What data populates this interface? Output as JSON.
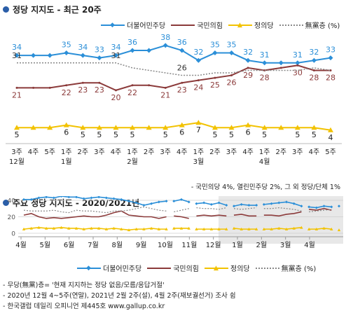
{
  "top": {
    "title": "정당 지지도 - 최근 20주",
    "note": "- 국민의당 4%, 열린민주당 2%, 그 외 정당/단체 1%"
  },
  "bottom": {
    "title": "주요 정당 지지도 - 2020/2021년"
  },
  "legend": [
    {
      "name": "더불어민주당",
      "color": "#2b8fd8",
      "marker": "diamond"
    },
    {
      "name": "국민의힘",
      "color": "#8b3a3a",
      "marker": "none"
    },
    {
      "name": "정의당",
      "color": "#f2c200",
      "marker": "triangle"
    },
    {
      "name": "無黨층 (%)",
      "color": "#888888",
      "marker": "dotted"
    }
  ],
  "footnotes": [
    "- 무당(無黨)층= '현재 지지하는 정당 없음/모름/응답거절'",
    "- 2020년 12월 4~5주(연말), 2021년 2월 2주(설), 4월 2주(재보궐선거) 조사 쉼",
    "- 한국갤럽 데일리 오피니언 제445호 www.gallup.co.kr"
  ],
  "chart_data": [
    {
      "type": "line",
      "title": "정당 지지도 - 최근 20주",
      "categories": [
        "3주",
        "4주",
        "5주",
        "1주",
        "2주",
        "3주",
        "4주",
        "1주",
        "2주",
        "3주",
        "4주",
        "1주",
        "2주",
        "3주",
        "4주",
        "1주",
        "2주",
        "3주",
        "4주",
        "5주"
      ],
      "month_labels": [
        {
          "label": "12월",
          "index": 0
        },
        {
          "label": "1월",
          "index": 3
        },
        {
          "label": "2월",
          "index": 7
        },
        {
          "label": "3월",
          "index": 11
        },
        {
          "label": "4월",
          "index": 15
        }
      ],
      "ylim": [
        0,
        45
      ],
      "series": [
        {
          "name": "더불어민주당",
          "color": "#2b8fd8",
          "values": [
            34,
            34,
            34,
            35,
            34,
            33,
            34,
            36,
            36,
            38,
            36,
            32,
            35,
            35,
            32,
            31,
            31,
            31,
            32,
            33
          ],
          "labels": [
            "34",
            "",
            "",
            "35",
            "34",
            "33",
            "34",
            "36",
            "",
            "38",
            "36",
            "32",
            "35",
            "35",
            "32",
            "31",
            "",
            "31",
            "32",
            "33"
          ]
        },
        {
          "name": "국민의힘",
          "color": "#8b3a3a",
          "values": [
            21,
            21,
            21,
            22,
            23,
            23,
            20,
            22,
            22,
            21,
            23,
            24,
            25,
            26,
            29,
            28,
            29,
            30,
            28,
            28
          ],
          "labels": [
            "21",
            "",
            "",
            "22",
            "23",
            "23",
            "20",
            "22",
            "",
            "21",
            "23",
            "24",
            "25",
            "26",
            "29",
            "28",
            "",
            "30",
            "28",
            "28"
          ]
        },
        {
          "name": "정의당",
          "color": "#f2c200",
          "values": [
            5,
            5,
            5,
            6,
            5,
            5,
            5,
            5,
            5,
            5,
            6,
            7,
            5,
            5,
            6,
            5,
            5,
            5,
            5,
            4
          ],
          "labels": [
            "5",
            "",
            "",
            "6",
            "5",
            "5",
            "5",
            "5",
            "",
            "5",
            "6",
            "7",
            "5",
            "5",
            "6",
            "5",
            "",
            "5",
            "5",
            "4"
          ]
        },
        {
          "name": "無黨층",
          "color": "#888888",
          "values": [
            31,
            31,
            31,
            31,
            31,
            31,
            31,
            29,
            28,
            27,
            26,
            26,
            27,
            27,
            28,
            28,
            28,
            28,
            29,
            28
          ],
          "labels": [
            "31",
            "",
            "",
            "",
            "",
            "",
            "31",
            "",
            "",
            "",
            "26",
            "",
            "",
            "",
            "",
            "",
            "",
            "",
            "",
            ""
          ]
        }
      ]
    },
    {
      "type": "line",
      "title": "주요 정당 지지도 - 2020/2021년",
      "x_month_labels": [
        "4월",
        "5월",
        "6월",
        "7월",
        "8월",
        "9월",
        "10월",
        "11월",
        "12월",
        "1월",
        "2월",
        "3월",
        "4월"
      ],
      "ylim": [
        0,
        40
      ],
      "yticks": [
        0,
        20,
        40
      ],
      "shaded_period": "2021",
      "gaps_after_index": [
        19,
        22,
        27,
        31,
        37,
        41
      ],
      "series": [
        {
          "name": "더불어민주당",
          "color": "#2b8fd8",
          "values": [
            41,
            41,
            43,
            44,
            43,
            45,
            44,
            44,
            42,
            43,
            44,
            43,
            42,
            41,
            39,
            37,
            34,
            36,
            38,
            39,
            39,
            41,
            38,
            36,
            37,
            35,
            37,
            34,
            33,
            35,
            34,
            34,
            35,
            36,
            37,
            38,
            36,
            33,
            32,
            31,
            33,
            32,
            33
          ]
        },
        {
          "name": "국민의힘",
          "color": "#8b3a3a",
          "values": [
            22,
            24,
            20,
            18,
            19,
            18,
            19,
            20,
            21,
            20,
            20,
            22,
            25,
            27,
            22,
            21,
            20,
            20,
            18,
            20,
            21,
            20,
            18,
            21,
            22,
            21,
            22,
            21,
            22,
            23,
            21,
            21,
            22,
            22,
            21,
            23,
            24,
            26,
            29,
            28,
            30,
            28,
            28
          ]
        },
        {
          "name": "정의당",
          "color": "#f2c200",
          "values": [
            5,
            6,
            7,
            6,
            6,
            7,
            6,
            6,
            5,
            6,
            6,
            5,
            6,
            5,
            4,
            5,
            5,
            6,
            5,
            5,
            6,
            6,
            6,
            5,
            5,
            5,
            5,
            5,
            6,
            5,
            5,
            5,
            5,
            5,
            6,
            5,
            6,
            7,
            5,
            5,
            6,
            5,
            4
          ]
        },
        {
          "name": "無黨층",
          "color": "#888888",
          "values": [
            28,
            27,
            27,
            27,
            28,
            26,
            25,
            28,
            27,
            27,
            26,
            25,
            27,
            27,
            28,
            30,
            32,
            30,
            28,
            27,
            26,
            28,
            30,
            31,
            30,
            30,
            29,
            31,
            30,
            29,
            30,
            31,
            30,
            30,
            31,
            30,
            29,
            27,
            26,
            27,
            28,
            29,
            28
          ]
        }
      ]
    }
  ]
}
